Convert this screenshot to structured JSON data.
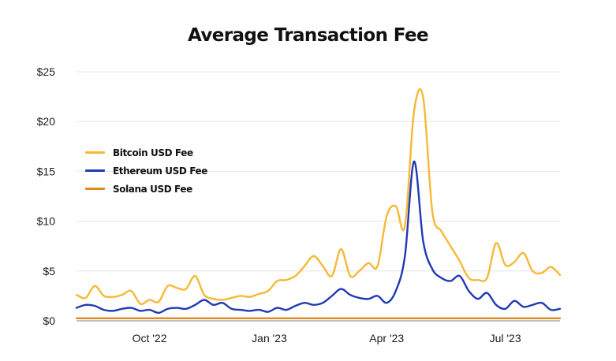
{
  "chart_data": {
    "type": "line",
    "title": "Average Transaction Fee",
    "xlabel": "",
    "ylabel": "",
    "x_ticks": [
      "Oct '22",
      "Jan '23",
      "Apr '23",
      "Jul '23"
    ],
    "y_ticks": [
      "$0",
      "$5",
      "$10",
      "$15",
      "$20",
      "$25"
    ],
    "ylim": [
      0,
      25
    ],
    "grid": true,
    "legend_position": "left-middle",
    "x": [
      "2022-08-20",
      "2022-08-27",
      "2022-09-03",
      "2022-09-10",
      "2022-09-17",
      "2022-09-24",
      "2022-10-01",
      "2022-10-08",
      "2022-10-15",
      "2022-10-22",
      "2022-10-29",
      "2022-11-05",
      "2022-11-12",
      "2022-11-19",
      "2022-11-26",
      "2022-12-03",
      "2022-12-10",
      "2022-12-17",
      "2022-12-24",
      "2022-12-31",
      "2023-01-07",
      "2023-01-14",
      "2023-01-21",
      "2023-01-28",
      "2023-02-04",
      "2023-02-11",
      "2023-02-18",
      "2023-02-25",
      "2023-03-04",
      "2023-03-11",
      "2023-03-18",
      "2023-03-25",
      "2023-04-01",
      "2023-04-08",
      "2023-04-15",
      "2023-04-22",
      "2023-04-29",
      "2023-05-06",
      "2023-05-13",
      "2023-05-20",
      "2023-05-27",
      "2023-06-03",
      "2023-06-10",
      "2023-06-17",
      "2023-06-24",
      "2023-07-01",
      "2023-07-08",
      "2023-07-15",
      "2023-07-22",
      "2023-07-29",
      "2023-08-05",
      "2023-08-12",
      "2023-08-19",
      "2023-08-26"
    ],
    "series": [
      {
        "name": "Bitcoin USD Fee",
        "color": "#f5b935",
        "values": [
          2.6,
          2.3,
          3.5,
          2.5,
          2.4,
          2.6,
          3.0,
          1.7,
          2.1,
          1.9,
          3.5,
          3.3,
          3.2,
          4.5,
          2.6,
          2.2,
          2.1,
          2.3,
          2.5,
          2.4,
          2.7,
          3.0,
          4.0,
          4.1,
          4.5,
          5.5,
          6.5,
          5.5,
          4.5,
          7.2,
          4.5,
          5.0,
          5.8,
          5.5,
          10.5,
          11.5,
          9.5,
          21.0,
          22.4,
          11.0,
          9.0,
          7.5,
          6.0,
          4.3,
          4.1,
          4.3,
          7.8,
          5.6,
          5.9,
          6.8,
          5.0,
          4.8,
          5.4,
          4.6
        ]
      },
      {
        "name": "Ethereum USD Fee",
        "color": "#1f3ab4",
        "values": [
          1.3,
          1.6,
          1.5,
          1.1,
          1.0,
          1.2,
          1.3,
          1.0,
          1.1,
          0.8,
          1.2,
          1.3,
          1.2,
          1.6,
          2.1,
          1.6,
          1.8,
          1.2,
          1.1,
          1.0,
          1.1,
          0.9,
          1.3,
          1.1,
          1.5,
          1.8,
          1.6,
          1.8,
          2.5,
          3.2,
          2.6,
          2.3,
          2.2,
          2.5,
          1.8,
          3.0,
          6.5,
          16.0,
          8.0,
          5.2,
          4.3,
          4.0,
          4.5,
          3.0,
          2.2,
          2.8,
          1.6,
          1.2,
          2.0,
          1.4,
          1.6,
          1.8,
          1.1,
          1.2
        ]
      },
      {
        "name": "Solana USD Fee",
        "color": "#e08a1e",
        "values": [
          0.25,
          0.25,
          0.25,
          0.25,
          0.25,
          0.25,
          0.25,
          0.25,
          0.25,
          0.25,
          0.25,
          0.25,
          0.25,
          0.25,
          0.25,
          0.25,
          0.25,
          0.25,
          0.25,
          0.25,
          0.25,
          0.25,
          0.25,
          0.25,
          0.25,
          0.25,
          0.25,
          0.25,
          0.25,
          0.25,
          0.25,
          0.25,
          0.25,
          0.25,
          0.25,
          0.25,
          0.25,
          0.25,
          0.25,
          0.25,
          0.25,
          0.25,
          0.25,
          0.25,
          0.25,
          0.25,
          0.25,
          0.25,
          0.25,
          0.25,
          0.25,
          0.25,
          0.25,
          0.25
        ]
      }
    ]
  }
}
